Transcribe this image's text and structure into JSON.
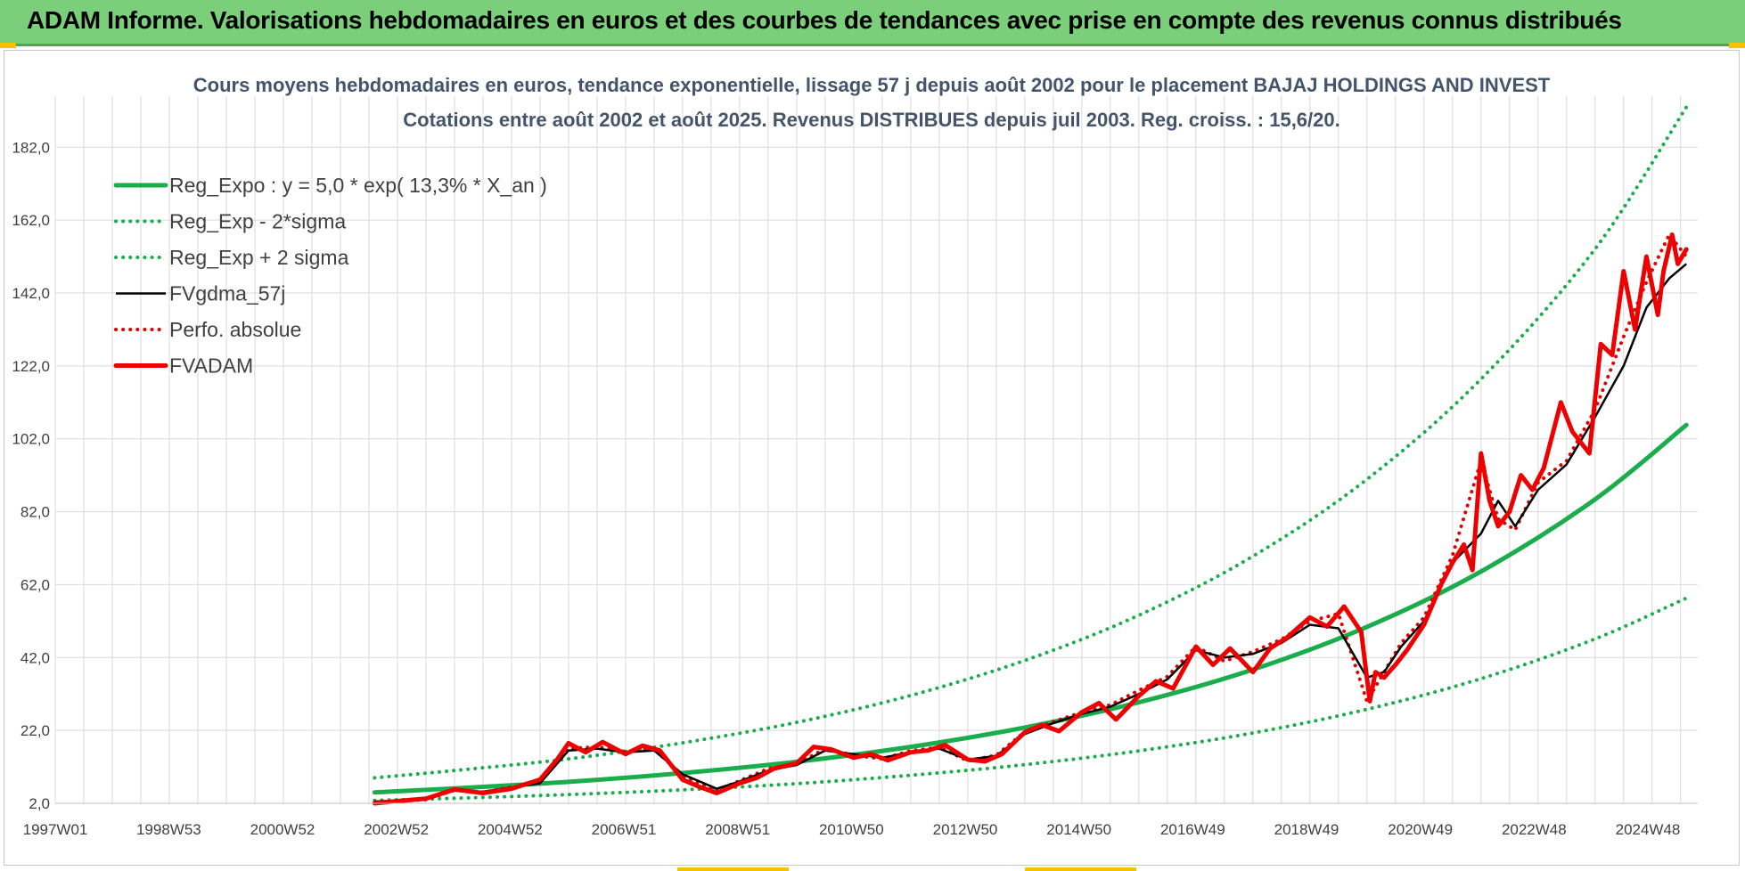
{
  "header": {
    "title": "ADAM Informe. Valorisations hebdomadaires en euros et des courbes de tendances avec prise en compte des revenus connus distribués"
  },
  "colors": {
    "banner": "#7ccf7a",
    "reg_expo": "#19ad4c",
    "sigma": "#19ad4c",
    "fvgdma": "#000000",
    "perfo": "#e00000",
    "fvadam": "#ee0000",
    "grid": "#d9d9d9"
  },
  "chart_data": {
    "type": "line",
    "title_line1": "Cours moyens hebdomadaires en euros, tendance exponentielle, lissage 57 j depuis août 2002 pour le placement BAJAJ HOLDINGS AND INVEST",
    "title_line2": "Cotations entre août 2002 et août 2025. Revenus DISTRIBUES depuis juil 2003. Reg. croiss. : 15,6/20.",
    "xlabel": "",
    "ylabel": "",
    "x_ticks": [
      "1997W01",
      "1998W53",
      "2000W52",
      "2002W52",
      "2004W52",
      "2006W51",
      "2008W51",
      "2010W50",
      "2012W50",
      "2014W50",
      "2016W49",
      "2018W49",
      "2020W49",
      "2022W48",
      "2024W48"
    ],
    "x_range_years": [
      1997.0,
      2025.8
    ],
    "y_ticks": [
      "2,0",
      "22,0",
      "42,0",
      "62,0",
      "82,0",
      "102,0",
      "122,0",
      "142,0",
      "162,0",
      "182,0"
    ],
    "ylim": [
      2,
      196
    ],
    "grid": true,
    "legend_position": "top-left",
    "series": [
      {
        "name": "Reg_Expo : y = 5,0 * exp( 13,3% *  X_an )",
        "style": "solid-thick",
        "color": "#19ad4c",
        "x": [
          2002.6,
          2004,
          2006,
          2008,
          2010,
          2012,
          2014,
          2016,
          2018,
          2020,
          2022,
          2024,
          2025.6
        ],
        "y": [
          5.0,
          6.1,
          7.9,
          10.3,
          13.4,
          17.5,
          22.8,
          29.7,
          38.7,
          50.4,
          65.6,
          85.4,
          105.8
        ]
      },
      {
        "name": "Reg_Exp - 2*sigma",
        "style": "dotted",
        "color": "#19ad4c",
        "x": [
          2002.6,
          2004,
          2006,
          2008,
          2010,
          2012,
          2014,
          2016,
          2018,
          2020,
          2022,
          2024,
          2025.6
        ],
        "y": [
          2.8,
          3.4,
          4.4,
          5.7,
          7.4,
          9.7,
          12.6,
          16.4,
          21.3,
          27.8,
          36.2,
          47.1,
          58.3
        ]
      },
      {
        "name": "Reg_Exp + 2 sigma",
        "style": "dotted",
        "color": "#19ad4c",
        "x": [
          2002.6,
          2004,
          2006,
          2008,
          2010,
          2012,
          2014,
          2016,
          2018,
          2020,
          2022,
          2024,
          2025.6
        ],
        "y": [
          9.0,
          11.0,
          14.2,
          18.6,
          24.2,
          31.6,
          41.2,
          53.6,
          69.8,
          90.9,
          118.4,
          154.1,
          193.0
        ]
      },
      {
        "name": "FVgdma_57j",
        "style": "solid",
        "color": "#000000",
        "x": [
          2002.6,
          2003.5,
          2004.0,
          2004.5,
          2005.5,
          2006.0,
          2006.5,
          2007.0,
          2007.5,
          2008.0,
          2008.6,
          2009.0,
          2009.5,
          2010.0,
          2010.5,
          2011.0,
          2011.5,
          2012.0,
          2012.5,
          2013.0,
          2013.5,
          2014.0,
          2014.5,
          2015.0,
          2015.5,
          2016.0,
          2016.5,
          2017.0,
          2017.5,
          2018.0,
          2018.5,
          2019.0,
          2019.5,
          2020.0,
          2020.3,
          2020.6,
          2021.0,
          2021.5,
          2022.0,
          2022.3,
          2022.6,
          2023.0,
          2023.5,
          2024.0,
          2024.5,
          2024.9,
          2025.3,
          2025.6
        ],
        "y": [
          2.5,
          3.2,
          5.5,
          5.2,
          7.5,
          16.5,
          17.0,
          16.0,
          16.5,
          10.0,
          6.0,
          8.0,
          11.0,
          12.5,
          16.5,
          15.5,
          14.5,
          16.0,
          17.0,
          14.0,
          15.0,
          21.0,
          24.0,
          26.5,
          28.5,
          32.0,
          36.0,
          44.0,
          42.0,
          43.0,
          46.0,
          51.0,
          50.0,
          36.5,
          38.0,
          45.0,
          52.0,
          68.0,
          76.0,
          85.0,
          78.0,
          88.0,
          95.0,
          108.0,
          122.0,
          138.0,
          146.0,
          150.0
        ]
      },
      {
        "name": "Perfo. absolue",
        "style": "dotted",
        "color": "#e00000",
        "x": [
          2002.6,
          2003.5,
          2004.0,
          2004.5,
          2005.5,
          2006.0,
          2006.5,
          2007.0,
          2007.5,
          2008.0,
          2008.6,
          2009.0,
          2009.5,
          2010.0,
          2010.5,
          2011.0,
          2011.5,
          2012.0,
          2012.5,
          2013.0,
          2013.5,
          2014.0,
          2014.5,
          2015.0,
          2015.5,
          2016.0,
          2016.5,
          2017.0,
          2017.5,
          2018.0,
          2018.5,
          2019.0,
          2019.5,
          2020.0,
          2020.3,
          2020.6,
          2021.0,
          2021.5,
          2022.0,
          2022.3,
          2022.6,
          2023.0,
          2023.5,
          2024.0,
          2024.5,
          2024.9,
          2025.3,
          2025.6
        ],
        "y": [
          2.3,
          3.0,
          5.6,
          5.0,
          7.8,
          17.0,
          17.5,
          16.2,
          17.0,
          9.5,
          5.5,
          8.2,
          11.5,
          12.8,
          17.0,
          15.2,
          14.2,
          16.4,
          17.4,
          13.6,
          15.2,
          21.6,
          24.4,
          27.0,
          29.0,
          33.0,
          36.8,
          45.0,
          41.0,
          43.6,
          47.0,
          52.0,
          54.0,
          30.0,
          38.0,
          46.0,
          53.0,
          70.0,
          96.0,
          80.0,
          77.0,
          90.0,
          96.0,
          110.0,
          130.0,
          145.0,
          158.0,
          152.0
        ]
      },
      {
        "name": "FVADAM",
        "style": "solid-thick",
        "color": "#ee0000",
        "x": [
          2002.6,
          2003.0,
          2003.5,
          2004.0,
          2004.5,
          2005.0,
          2005.5,
          2005.8,
          2006.0,
          2006.3,
          2006.6,
          2007.0,
          2007.3,
          2007.6,
          2008.0,
          2008.3,
          2008.6,
          2009.0,
          2009.3,
          2009.6,
          2010.0,
          2010.3,
          2010.6,
          2011.0,
          2011.3,
          2011.6,
          2012.0,
          2012.3,
          2012.6,
          2013.0,
          2013.3,
          2013.6,
          2014.0,
          2014.3,
          2014.6,
          2015.0,
          2015.3,
          2015.6,
          2016.0,
          2016.3,
          2016.6,
          2017.0,
          2017.3,
          2017.6,
          2018.0,
          2018.3,
          2018.6,
          2019.0,
          2019.3,
          2019.6,
          2019.9,
          2020.05,
          2020.15,
          2020.3,
          2020.5,
          2020.7,
          2021.0,
          2021.3,
          2021.5,
          2021.7,
          2021.85,
          2022.0,
          2022.15,
          2022.3,
          2022.5,
          2022.7,
          2022.9,
          2023.1,
          2023.4,
          2023.6,
          2023.9,
          2024.1,
          2024.3,
          2024.5,
          2024.7,
          2024.9,
          2025.1,
          2025.2,
          2025.35,
          2025.45,
          2025.6
        ],
        "y": [
          2.0,
          2.6,
          3.3,
          5.8,
          4.8,
          6.0,
          8.5,
          14.0,
          18.5,
          16.0,
          18.8,
          15.5,
          17.8,
          16.5,
          8.5,
          6.5,
          4.8,
          7.5,
          9.0,
          11.5,
          13.0,
          17.5,
          16.8,
          14.5,
          15.5,
          13.8,
          16.0,
          16.5,
          18.0,
          14.0,
          13.5,
          15.5,
          21.5,
          23.5,
          21.8,
          27.0,
          29.5,
          25.0,
          31.5,
          35.5,
          33.5,
          45.0,
          40.0,
          44.5,
          38.0,
          44.5,
          47.5,
          53.0,
          50.5,
          56.0,
          49.0,
          30.0,
          38.0,
          36.5,
          40.0,
          44.0,
          51.0,
          62.0,
          68.0,
          73.0,
          66.0,
          98.0,
          85.0,
          78.0,
          82.0,
          92.0,
          88.0,
          94.0,
          112.0,
          104.0,
          98.0,
          128.0,
          125.0,
          148.0,
          132.0,
          152.0,
          136.0,
          148.0,
          158.0,
          150.0,
          154.0
        ]
      }
    ]
  }
}
